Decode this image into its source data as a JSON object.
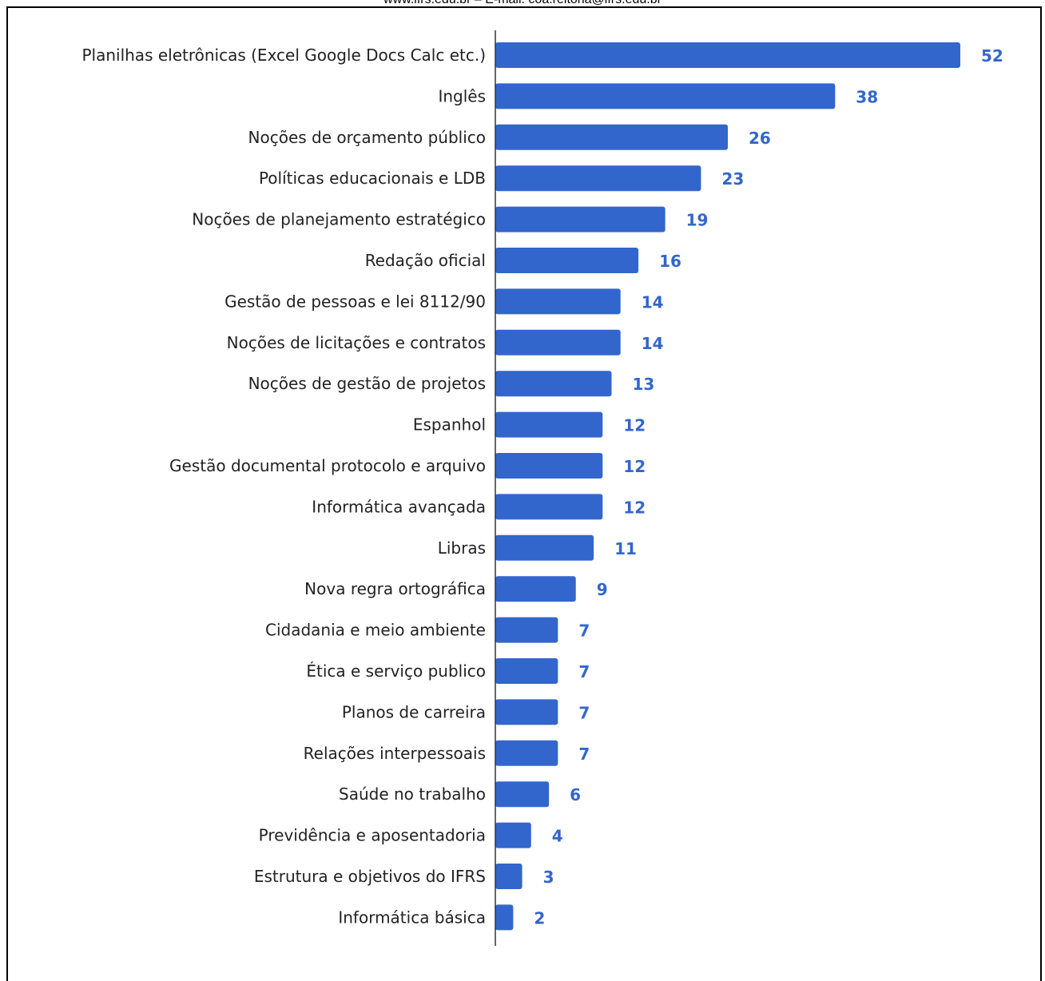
{
  "header": {
    "text": "www.ifrs.edu.br – E-mail: coa.reitoria@ifrs.edu.br"
  },
  "colors": {
    "bar": "#3366cc",
    "value_label": "#3366cc",
    "category_label": "#222222",
    "axis": "#333333"
  },
  "chart_data": {
    "type": "bar",
    "orientation": "horizontal",
    "categories": [
      "Planilhas eletrônicas (Excel Google Docs Calc etc.)",
      "Inglês",
      "Noções de orçamento público",
      "Políticas educacionais e LDB",
      "Noções de planejamento estratégico",
      "Redação oficial",
      "Gestão de pessoas e lei 8112/90",
      "Noções de licitações e contratos",
      "Noções de gestão de projetos",
      "Espanhol",
      "Gestão documental protocolo e arquivo",
      "Informática avançada",
      "Libras",
      "Nova regra ortográfica",
      "Cidadania e meio ambiente",
      "Ética e serviço publico",
      "Planos de carreira",
      "Relações interpessoais",
      "Saúde no trabalho",
      "Previdência e aposentadoria",
      "Estrutura e objetivos do IFRS",
      "Informática básica"
    ],
    "values": [
      52,
      38,
      26,
      23,
      19,
      16,
      14,
      14,
      13,
      12,
      12,
      12,
      11,
      9,
      7,
      7,
      7,
      7,
      6,
      4,
      3,
      2
    ],
    "xlim": [
      0,
      52
    ],
    "grid": false,
    "legend": "none",
    "data_labels": true
  }
}
